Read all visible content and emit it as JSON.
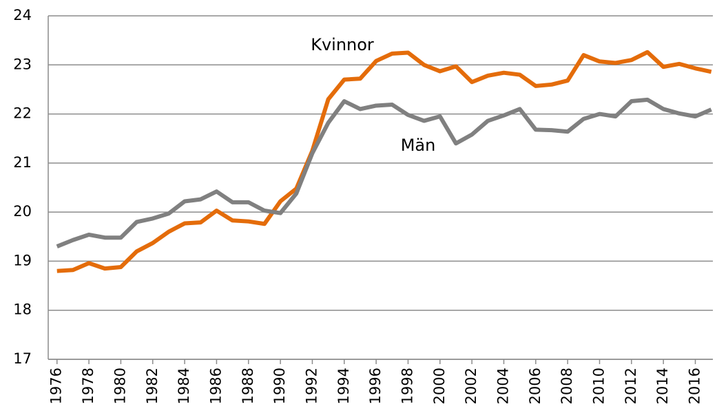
{
  "chart_data": {
    "type": "line",
    "x": [
      1976,
      1977,
      1978,
      1979,
      1980,
      1981,
      1982,
      1983,
      1984,
      1985,
      1986,
      1987,
      1988,
      1989,
      1990,
      1991,
      1992,
      1993,
      1994,
      1995,
      1996,
      1997,
      1998,
      1999,
      2000,
      2001,
      2002,
      2003,
      2004,
      2005,
      2006,
      2007,
      2008,
      2009,
      2010,
      2011,
      2012,
      2013,
      2014,
      2015,
      2016,
      2017
    ],
    "series": [
      {
        "name": "Kvinnor",
        "color": "#e46c0a",
        "values": [
          18.8,
          18.82,
          18.96,
          18.85,
          18.88,
          19.2,
          19.37,
          19.6,
          19.77,
          19.79,
          20.03,
          19.83,
          19.81,
          19.76,
          20.22,
          20.48,
          21.25,
          22.3,
          22.7,
          22.72,
          23.08,
          23.23,
          23.25,
          23.0,
          22.87,
          22.97,
          22.65,
          22.78,
          22.84,
          22.8,
          22.57,
          22.6,
          22.68,
          23.2,
          23.07,
          23.04,
          23.1,
          23.26,
          22.96,
          23.02,
          22.93,
          22.86
        ]
      },
      {
        "name": "Män",
        "color": "#808080",
        "values": [
          19.3,
          19.43,
          19.54,
          19.48,
          19.48,
          19.8,
          19.87,
          19.97,
          20.22,
          20.26,
          20.42,
          20.2,
          20.2,
          20.03,
          19.98,
          20.38,
          21.2,
          21.82,
          22.26,
          22.1,
          22.17,
          22.19,
          21.98,
          21.86,
          21.95,
          21.4,
          21.58,
          21.86,
          21.97,
          22.1,
          21.68,
          21.67,
          21.64,
          21.9,
          22.0,
          21.95,
          22.26,
          22.29,
          22.1,
          22.01,
          21.95,
          22.09
        ]
      }
    ],
    "xlim": [
      1975.45,
      2017.1
    ],
    "xticks": [
      1976,
      1978,
      1980,
      1982,
      1984,
      1986,
      1988,
      1990,
      1992,
      1994,
      1996,
      1998,
      2000,
      2002,
      2004,
      2006,
      2008,
      2010,
      2012,
      2014,
      2016
    ],
    "ylim": [
      17,
      24
    ],
    "yticks": [
      17,
      18,
      19,
      20,
      21,
      22,
      23,
      24
    ],
    "grid": true
  }
}
